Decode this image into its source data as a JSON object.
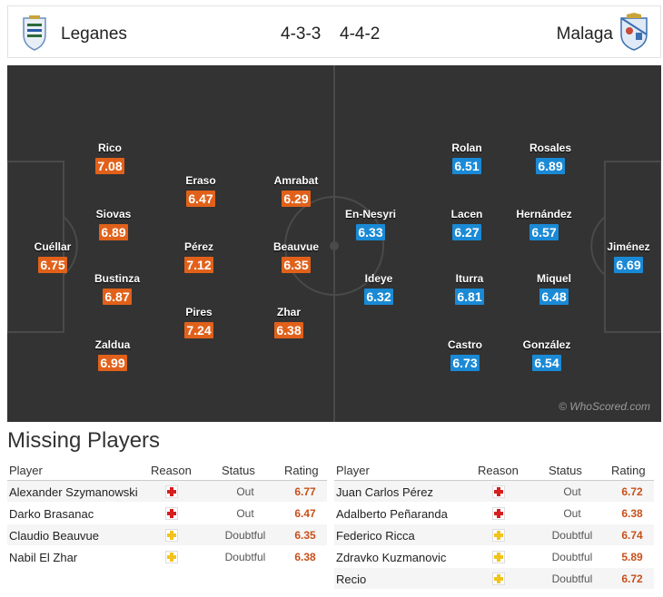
{
  "match": {
    "home_team": "Leganes",
    "away_team": "Malaga",
    "home_formation": "4-3-3",
    "away_formation": "4-4-2"
  },
  "watermark": "© WhoScored.com",
  "colors": {
    "home": "#e1611a",
    "away": "#1a8ad6",
    "pitch": "#333333"
  },
  "home_players": [
    {
      "name": "Cuéllar",
      "rating": "6.75"
    },
    {
      "name": "Rico",
      "rating": "7.08"
    },
    {
      "name": "Siovas",
      "rating": "6.89"
    },
    {
      "name": "Bustinza",
      "rating": "6.87"
    },
    {
      "name": "Zaldua",
      "rating": "6.99"
    },
    {
      "name": "Eraso",
      "rating": "6.47"
    },
    {
      "name": "Pérez",
      "rating": "7.12"
    },
    {
      "name": "Pires",
      "rating": "7.24"
    },
    {
      "name": "Amrabat",
      "rating": "6.29"
    },
    {
      "name": "Beauvue",
      "rating": "6.35"
    },
    {
      "name": "Zhar",
      "rating": "6.38"
    }
  ],
  "away_players": [
    {
      "name": "Jiménez",
      "rating": "6.69"
    },
    {
      "name": "Rosales",
      "rating": "6.89"
    },
    {
      "name": "Hernández",
      "rating": "6.57"
    },
    {
      "name": "Miquel",
      "rating": "6.48"
    },
    {
      "name": "González",
      "rating": "6.54"
    },
    {
      "name": "Rolan",
      "rating": "6.51"
    },
    {
      "name": "Lacen",
      "rating": "6.27"
    },
    {
      "name": "Iturra",
      "rating": "6.81"
    },
    {
      "name": "Castro",
      "rating": "6.73"
    },
    {
      "name": "En-Nesyri",
      "rating": "6.33"
    },
    {
      "name": "Ideye",
      "rating": "6.32"
    }
  ],
  "missing": {
    "title": "Missing Players",
    "headers": {
      "player": "Player",
      "reason": "Reason",
      "status": "Status",
      "rating": "Rating"
    },
    "home": [
      {
        "name": "Alexander Szymanowski",
        "reason": "injury",
        "status": "Out",
        "rating": "6.77"
      },
      {
        "name": "Darko Brasanac",
        "reason": "injury",
        "status": "Out",
        "rating": "6.47"
      },
      {
        "name": "Claudio Beauvue",
        "reason": "doubtful",
        "status": "Doubtful",
        "rating": "6.35"
      },
      {
        "name": "Nabil El Zhar",
        "reason": "doubtful",
        "status": "Doubtful",
        "rating": "6.38"
      }
    ],
    "away": [
      {
        "name": "Juan Carlos Pérez",
        "reason": "injury",
        "status": "Out",
        "rating": "6.72"
      },
      {
        "name": "Adalberto Peñaranda",
        "reason": "injury",
        "status": "Out",
        "rating": "6.38"
      },
      {
        "name": "Federico Ricca",
        "reason": "doubtful",
        "status": "Doubtful",
        "rating": "6.74"
      },
      {
        "name": "Zdravko Kuzmanovic",
        "reason": "doubtful",
        "status": "Doubtful",
        "rating": "5.89"
      },
      {
        "name": "Recio",
        "reason": "doubtful",
        "status": "Doubtful",
        "rating": "6.72"
      }
    ]
  }
}
